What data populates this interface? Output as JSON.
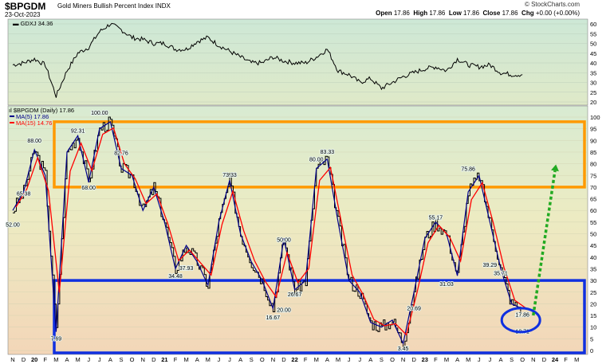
{
  "header": {
    "symbol": "$BPGDM",
    "name": "Gold Miners Bullish Percent Index",
    "exchange": "INDX",
    "date": "23-Oct-2023",
    "credit": "© StockCharts.com",
    "quote": {
      "open_label": "Open",
      "open": "17.86",
      "high_label": "High",
      "high": "17.86",
      "low_label": "Low",
      "low": "17.86",
      "close_label": "Close",
      "close": "17.86",
      "chg_label": "Chg",
      "chg": "+0.00 (+0.00%)"
    }
  },
  "chart_data": [
    {
      "type": "line",
      "legend": "GDXJ 34.36",
      "ylim": [
        20,
        60
      ],
      "yticks": [
        "20",
        "25",
        "30",
        "35",
        "40",
        "45",
        "50",
        "55",
        "60"
      ],
      "x": [
        "2019-11",
        "2019-12",
        "2020-01",
        "2020-02",
        "2020-03",
        "2020-04",
        "2020-05",
        "2020-06",
        "2020-07",
        "2020-08",
        "2020-09",
        "2020-10",
        "2020-11",
        "2020-12",
        "2021-01",
        "2021-02",
        "2021-03",
        "2021-04",
        "2021-05",
        "2021-06",
        "2021-07",
        "2021-08",
        "2021-09",
        "2021-10",
        "2021-11",
        "2021-12",
        "2022-01",
        "2022-02",
        "2022-03",
        "2022-04",
        "2022-05",
        "2022-06",
        "2022-07",
        "2022-08",
        "2022-09",
        "2022-10",
        "2022-11",
        "2022-12",
        "2023-01",
        "2023-02",
        "2023-03",
        "2023-04",
        "2023-05",
        "2023-06",
        "2023-07",
        "2023-08",
        "2023-09",
        "2023-10"
      ],
      "values": [
        39,
        40,
        42,
        39,
        23,
        36,
        45,
        48,
        56,
        60,
        57,
        53,
        52,
        50,
        50,
        47,
        47,
        51,
        53,
        49,
        46,
        43,
        40,
        40,
        43,
        41,
        40,
        40,
        43,
        47,
        36,
        34,
        30,
        32,
        27,
        30,
        33,
        35,
        37,
        38,
        36,
        42,
        39,
        38,
        39,
        35,
        34,
        34
      ]
    },
    {
      "type": "line",
      "title": "$BPGDM (Daily) 17.86",
      "series": [
        {
          "name": "MA(5) 17.86",
          "color": "#00008b"
        },
        {
          "name": "MA(15) 14.76",
          "color": "#ff0000"
        }
      ],
      "ylim": [
        0,
        100
      ],
      "yticks": [
        "0",
        "5",
        "10",
        "15",
        "20",
        "25",
        "30",
        "35",
        "40",
        "45",
        "50",
        "55",
        "60",
        "65",
        "70",
        "75",
        "80",
        "85",
        "90",
        "95",
        "100"
      ],
      "x": [
        "2019-11",
        "2019-12",
        "2020-01",
        "2020-02",
        "2020-03",
        "2020-04",
        "2020-05",
        "2020-06",
        "2020-07",
        "2020-08",
        "2020-09",
        "2020-10",
        "2020-11",
        "2020-12",
        "2021-01",
        "2021-02",
        "2021-03",
        "2021-04",
        "2021-05",
        "2021-06",
        "2021-07",
        "2021-08",
        "2021-09",
        "2021-10",
        "2021-11",
        "2021-12",
        "2022-01",
        "2022-02",
        "2022-03",
        "2022-04",
        "2022-05",
        "2022-06",
        "2022-07",
        "2022-08",
        "2022-09",
        "2022-10",
        "2022-11",
        "2022-12",
        "2023-01",
        "2023-02",
        "2023-03",
        "2023-04",
        "2023-05",
        "2023-06",
        "2023-07",
        "2023-08",
        "2023-09",
        "2023-10"
      ],
      "values": [
        60,
        68,
        86,
        75,
        8,
        85,
        92,
        72,
        95,
        98,
        78,
        75,
        60,
        70,
        55,
        35,
        45,
        38,
        28,
        55,
        73,
        50,
        38,
        30,
        18,
        48,
        26,
        30,
        78,
        82,
        55,
        30,
        25,
        12,
        10,
        13,
        3,
        25,
        48,
        55,
        50,
        32,
        68,
        75,
        55,
        35,
        20,
        17.86
      ],
      "labels": [
        {
          "text": "52.00",
          "date": "2019-11",
          "value": 52
        },
        {
          "text": "65.38",
          "date": "2019-12",
          "value": 65.38
        },
        {
          "text": "88.00",
          "date": "2020-01",
          "value": 88
        },
        {
          "text": "7.69",
          "date": "2020-03",
          "value": 7.69
        },
        {
          "text": "92.31",
          "date": "2020-05",
          "value": 92.31
        },
        {
          "text": "68.00",
          "date": "2020-06",
          "value": 68
        },
        {
          "text": "100.00",
          "date": "2020-07",
          "value": 100
        },
        {
          "text": "82.76",
          "date": "2020-09",
          "value": 82.76
        },
        {
          "text": "34.48",
          "date": "2021-02",
          "value": 34.48
        },
        {
          "text": "37.93",
          "date": "2021-03",
          "value": 37.93
        },
        {
          "text": "73.33",
          "date": "2021-07",
          "value": 73.33
        },
        {
          "text": "16.67",
          "date": "2021-11",
          "value": 16.67
        },
        {
          "text": "50.00",
          "date": "2021-12",
          "value": 50
        },
        {
          "text": "20.00",
          "date": "2021-12",
          "value": 20
        },
        {
          "text": "26.67",
          "date": "2022-01",
          "value": 26.67
        },
        {
          "text": "80.00",
          "date": "2022-03",
          "value": 80
        },
        {
          "text": "83.33",
          "date": "2022-04",
          "value": 83.33
        },
        {
          "text": "3.45",
          "date": "2022-11",
          "value": 3.45
        },
        {
          "text": "20.69",
          "date": "2022-12",
          "value": 20.69
        },
        {
          "text": "55.17",
          "date": "2023-02",
          "value": 55.17
        },
        {
          "text": "31.03",
          "date": "2023-03",
          "value": 31.03
        },
        {
          "text": "75.86",
          "date": "2023-05",
          "value": 75.86
        },
        {
          "text": "39.29",
          "date": "2023-07",
          "value": 39.29
        },
        {
          "text": "35.71",
          "date": "2023-08",
          "value": 35.71
        },
        {
          "text": "17.86",
          "date": "2023-10",
          "value": 17.86
        },
        {
          "text": "10.71",
          "date": "2023-10",
          "value": 10.71
        }
      ],
      "annotations": {
        "upper_box": {
          "ymin": 70,
          "ymax": 98,
          "color": "#ff9900"
        },
        "lower_box": {
          "ymin": 0,
          "ymax": 30,
          "color": "#1030e0"
        },
        "circle": {
          "date": "2023-10",
          "value": 13,
          "color": "#1030e0"
        },
        "arrow": {
          "from_date": "2023-11",
          "from_value": 15,
          "to_date": "2024-01",
          "to_value": 77,
          "color": "#22aa22"
        }
      }
    }
  ],
  "x_axis_labels": [
    "N",
    "D",
    "20",
    "F",
    "M",
    "A",
    "M",
    "J",
    "J",
    "A",
    "S",
    "O",
    "N",
    "D",
    "21",
    "F",
    "M",
    "A",
    "M",
    "J",
    "J",
    "A",
    "S",
    "O",
    "N",
    "D",
    "22",
    "F",
    "M",
    "A",
    "M",
    "J",
    "J",
    "A",
    "S",
    "O",
    "N",
    "D",
    "23",
    "F",
    "M",
    "A",
    "M",
    "J",
    "J",
    "A",
    "S",
    "O",
    "N",
    "D",
    "24",
    "F",
    "M"
  ]
}
